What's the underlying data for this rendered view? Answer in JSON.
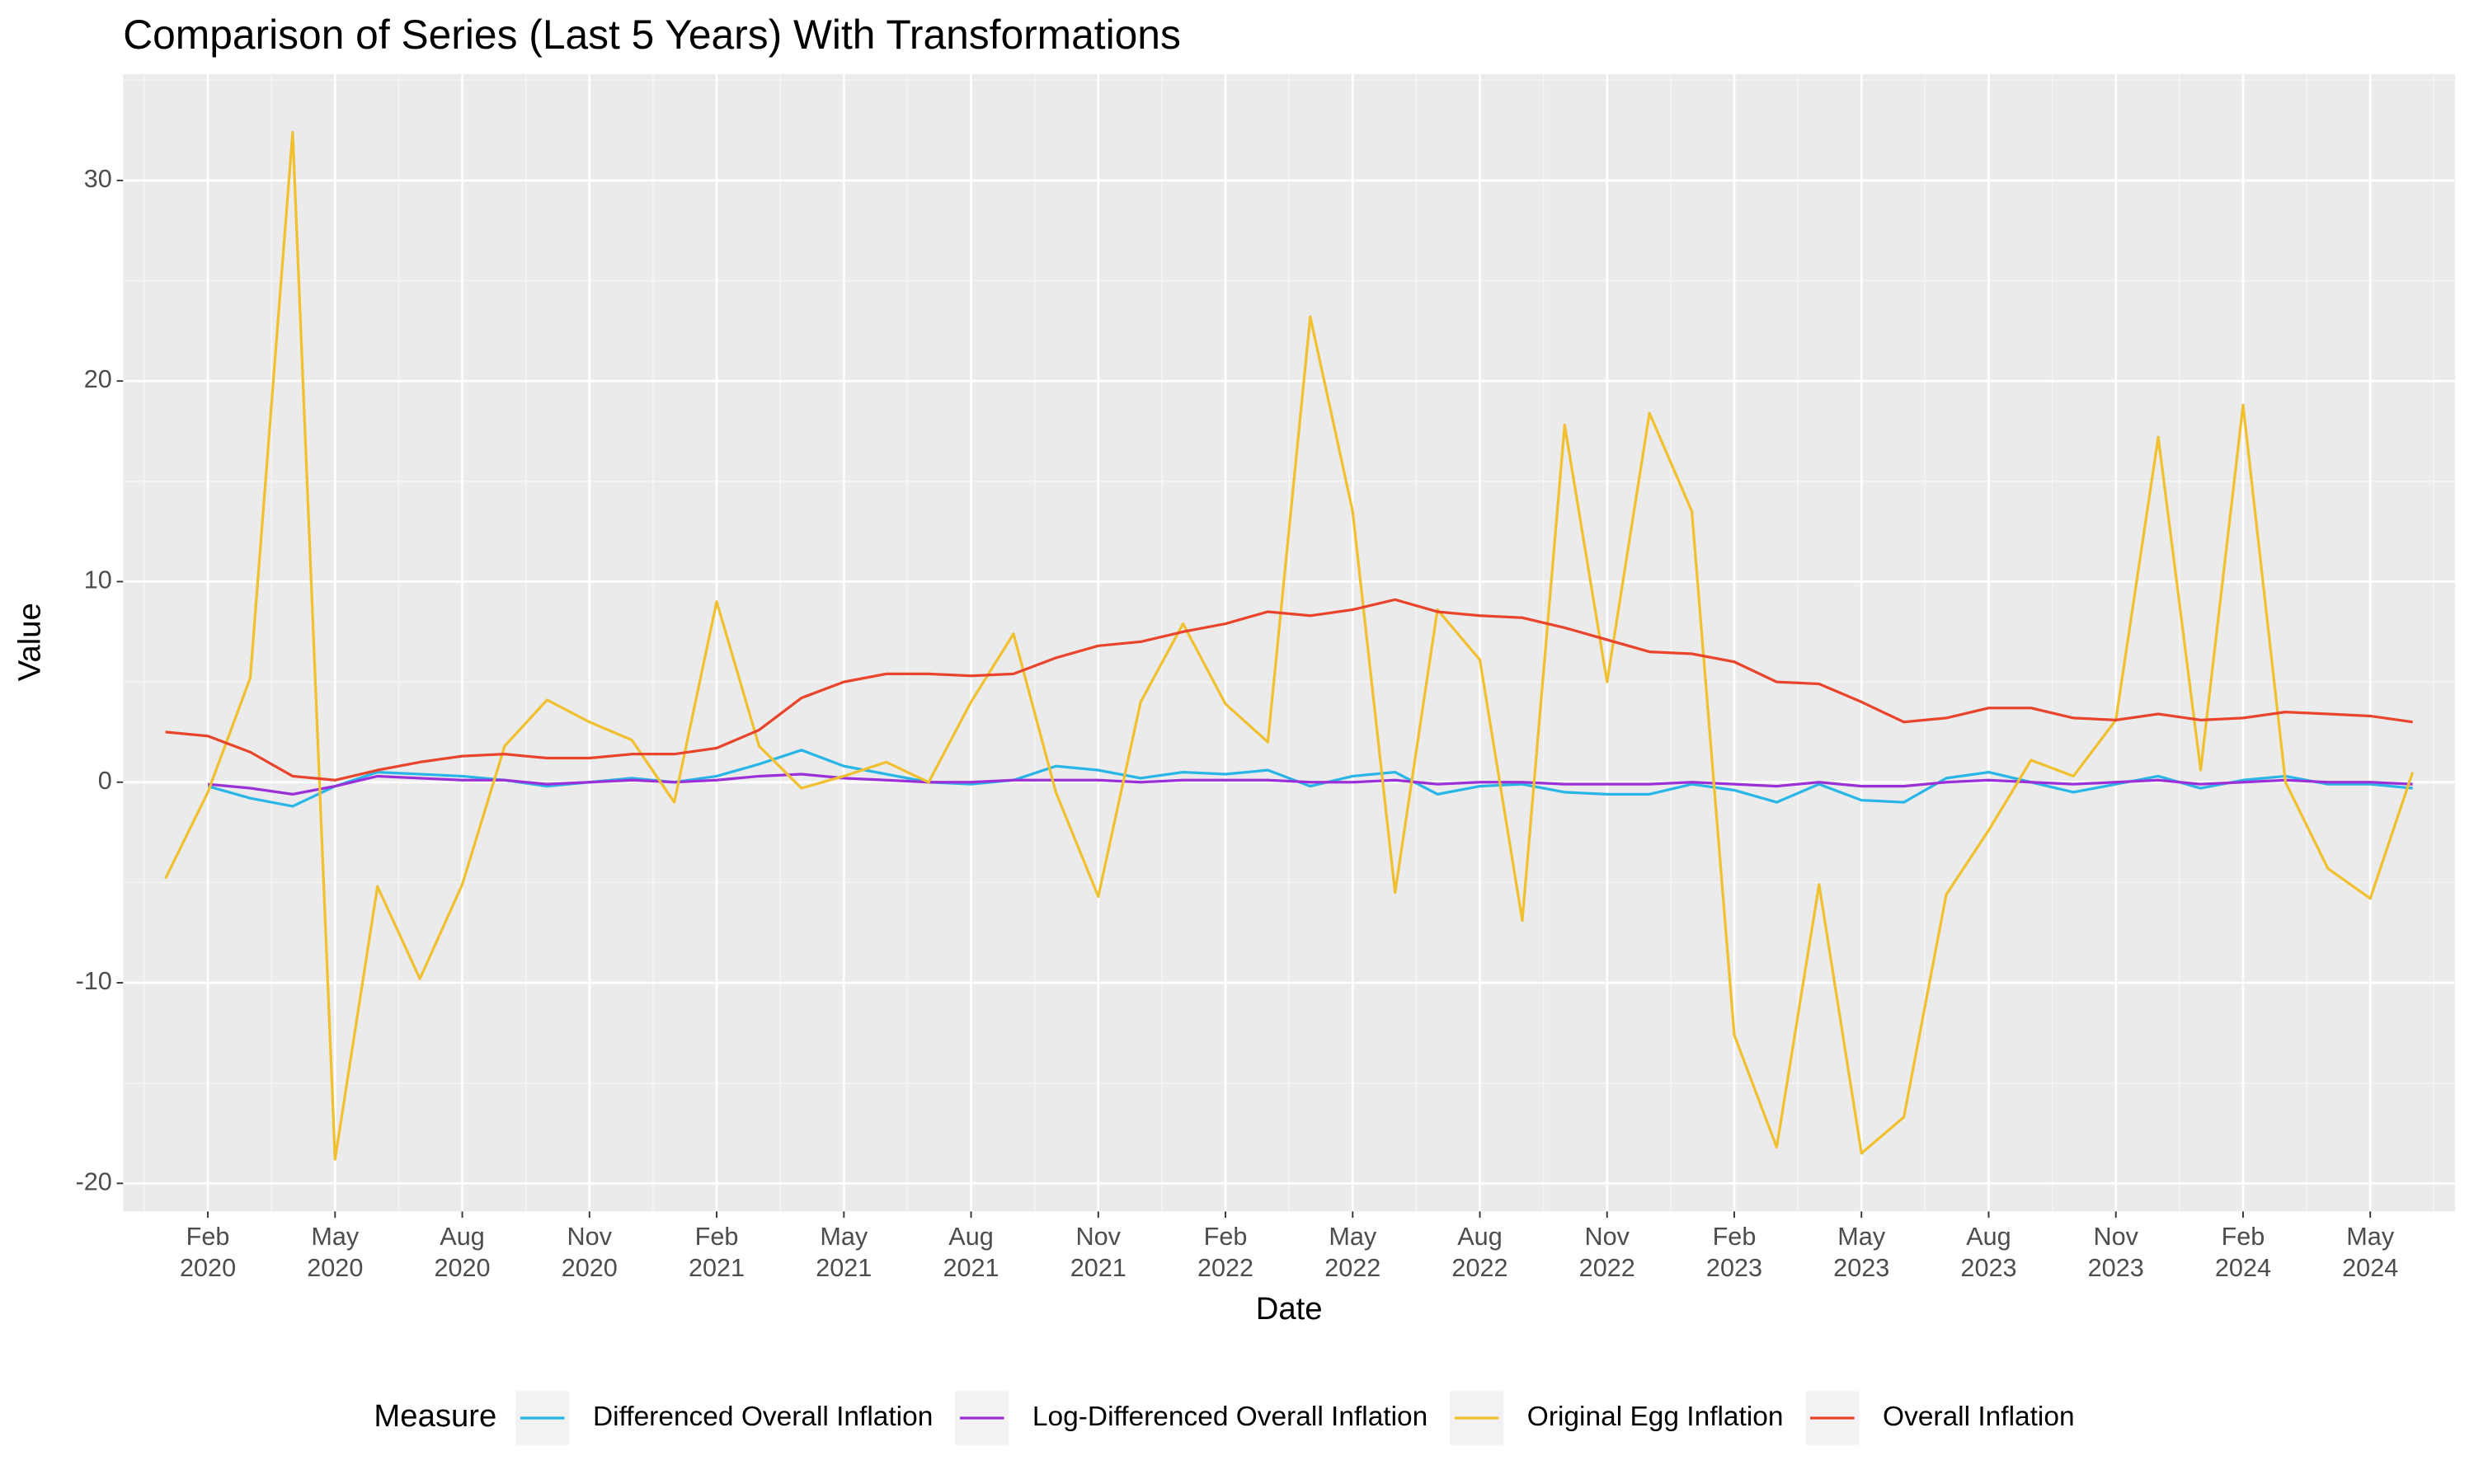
{
  "chart_data": {
    "type": "line",
    "title": "Comparison of Series (Last 5 Years) With Transformations",
    "x_label": "Date",
    "y_label": "Value",
    "legend_title": "Measure",
    "legend_position": "bottom",
    "grid": true,
    "x": [
      "2020-01",
      "2020-02",
      "2020-03",
      "2020-04",
      "2020-05",
      "2020-06",
      "2020-07",
      "2020-08",
      "2020-09",
      "2020-10",
      "2020-11",
      "2020-12",
      "2021-01",
      "2021-02",
      "2021-03",
      "2021-04",
      "2021-05",
      "2021-06",
      "2021-07",
      "2021-08",
      "2021-09",
      "2021-10",
      "2021-11",
      "2021-12",
      "2022-01",
      "2022-02",
      "2022-03",
      "2022-04",
      "2022-05",
      "2022-06",
      "2022-07",
      "2022-08",
      "2022-09",
      "2022-10",
      "2022-11",
      "2022-12",
      "2023-01",
      "2023-02",
      "2023-03",
      "2023-04",
      "2023-05",
      "2023-06",
      "2023-07",
      "2023-08",
      "2023-09",
      "2023-10",
      "2023-11",
      "2023-12",
      "2024-01",
      "2024-02",
      "2024-03",
      "2024-04",
      "2024-05",
      "2024-06"
    ],
    "xlim": [
      "2019-12",
      "2024-07"
    ],
    "xticks": [
      {
        "value": "2020-02",
        "label": "Feb 2020"
      },
      {
        "value": "2020-05",
        "label": "May 2020"
      },
      {
        "value": "2020-08",
        "label": "Aug 2020"
      },
      {
        "value": "2020-11",
        "label": "Nov 2020"
      },
      {
        "value": "2021-02",
        "label": "Feb 2021"
      },
      {
        "value": "2021-05",
        "label": "May 2021"
      },
      {
        "value": "2021-08",
        "label": "Aug 2021"
      },
      {
        "value": "2021-11",
        "label": "Nov 2021"
      },
      {
        "value": "2022-02",
        "label": "Feb 2022"
      },
      {
        "value": "2022-05",
        "label": "May 2022"
      },
      {
        "value": "2022-08",
        "label": "Aug 2022"
      },
      {
        "value": "2022-11",
        "label": "Nov 2022"
      },
      {
        "value": "2023-02",
        "label": "Feb 2023"
      },
      {
        "value": "2023-05",
        "label": "May 2023"
      },
      {
        "value": "2023-08",
        "label": "Aug 2023"
      },
      {
        "value": "2023-11",
        "label": "Nov 2023"
      },
      {
        "value": "2024-02",
        "label": "Feb 2024"
      },
      {
        "value": "2024-05",
        "label": "May 2024"
      }
    ],
    "ylim": [
      -21.4,
      35.3
    ],
    "yticks": [
      -20,
      -10,
      0,
      10,
      20,
      30
    ],
    "series": [
      {
        "name": "Differenced Overall Inflation",
        "color": "#29b6e6",
        "values": [
          null,
          -0.2,
          -0.8,
          -1.2,
          -0.2,
          0.5,
          0.4,
          0.3,
          0.1,
          -0.2,
          0.0,
          0.2,
          0.0,
          0.3,
          0.9,
          1.6,
          0.8,
          0.4,
          0.0,
          -0.1,
          0.1,
          0.8,
          0.6,
          0.2,
          0.5,
          0.4,
          0.6,
          -0.2,
          0.3,
          0.5,
          -0.6,
          -0.2,
          -0.1,
          -0.5,
          -0.6,
          -0.6,
          -0.1,
          -0.4,
          -1.0,
          -0.1,
          -0.9,
          -1.0,
          0.2,
          0.5,
          0.0,
          -0.5,
          -0.1,
          0.3,
          -0.3,
          0.1,
          0.3,
          -0.1,
          -0.1,
          -0.3
        ]
      },
      {
        "name": "Log-Differenced Overall Inflation",
        "color": "#9b30d9",
        "values": [
          null,
          -0.1,
          -0.3,
          -0.6,
          -0.2,
          0.3,
          0.2,
          0.1,
          0.1,
          -0.1,
          0.0,
          0.1,
          0.0,
          0.1,
          0.3,
          0.4,
          0.2,
          0.1,
          0.0,
          0.0,
          0.1,
          0.1,
          0.1,
          0.0,
          0.1,
          0.1,
          0.1,
          0.0,
          0.0,
          0.1,
          -0.1,
          0.0,
          0.0,
          -0.1,
          -0.1,
          -0.1,
          0.0,
          -0.1,
          -0.2,
          0.0,
          -0.2,
          -0.2,
          0.0,
          0.1,
          0.0,
          -0.1,
          0.0,
          0.1,
          -0.1,
          0.0,
          0.1,
          0.0,
          0.0,
          -0.1
        ]
      },
      {
        "name": "Original Egg Inflation",
        "color": "#f0c030",
        "values": [
          -4.8,
          -0.5,
          5.2,
          32.4,
          -18.8,
          -5.2,
          -9.8,
          -5.1,
          1.8,
          4.1,
          3.0,
          2.1,
          -1.0,
          9.0,
          1.8,
          -0.3,
          0.3,
          1.0,
          0.0,
          4.0,
          7.4,
          -0.5,
          -5.7,
          4.0,
          7.9,
          3.9,
          2.0,
          23.2,
          13.5,
          -5.5,
          8.6,
          6.1,
          -6.9,
          17.8,
          5.0,
          18.4,
          13.5,
          -12.6,
          -18.2,
          -5.1,
          -18.5,
          -16.7,
          -5.6,
          -2.4,
          1.1,
          0.3,
          3.1,
          17.2,
          0.6,
          18.8,
          0.0,
          -4.3,
          -5.8,
          0.5
        ]
      },
      {
        "name": "Overall Inflation",
        "color": "#e8452c",
        "values": [
          2.5,
          2.3,
          1.5,
          0.3,
          0.1,
          0.6,
          1.0,
          1.3,
          1.4,
          1.2,
          1.2,
          1.4,
          1.4,
          1.7,
          2.6,
          4.2,
          5.0,
          5.4,
          5.4,
          5.3,
          5.4,
          6.2,
          6.8,
          7.0,
          7.5,
          7.9,
          8.5,
          8.3,
          8.6,
          9.1,
          8.5,
          8.3,
          8.2,
          7.7,
          7.1,
          6.5,
          6.4,
          6.0,
          5.0,
          4.9,
          4.0,
          3.0,
          3.2,
          3.7,
          3.7,
          3.2,
          3.1,
          3.4,
          3.1,
          3.2,
          3.5,
          3.4,
          3.3,
          3.0
        ]
      }
    ]
  }
}
